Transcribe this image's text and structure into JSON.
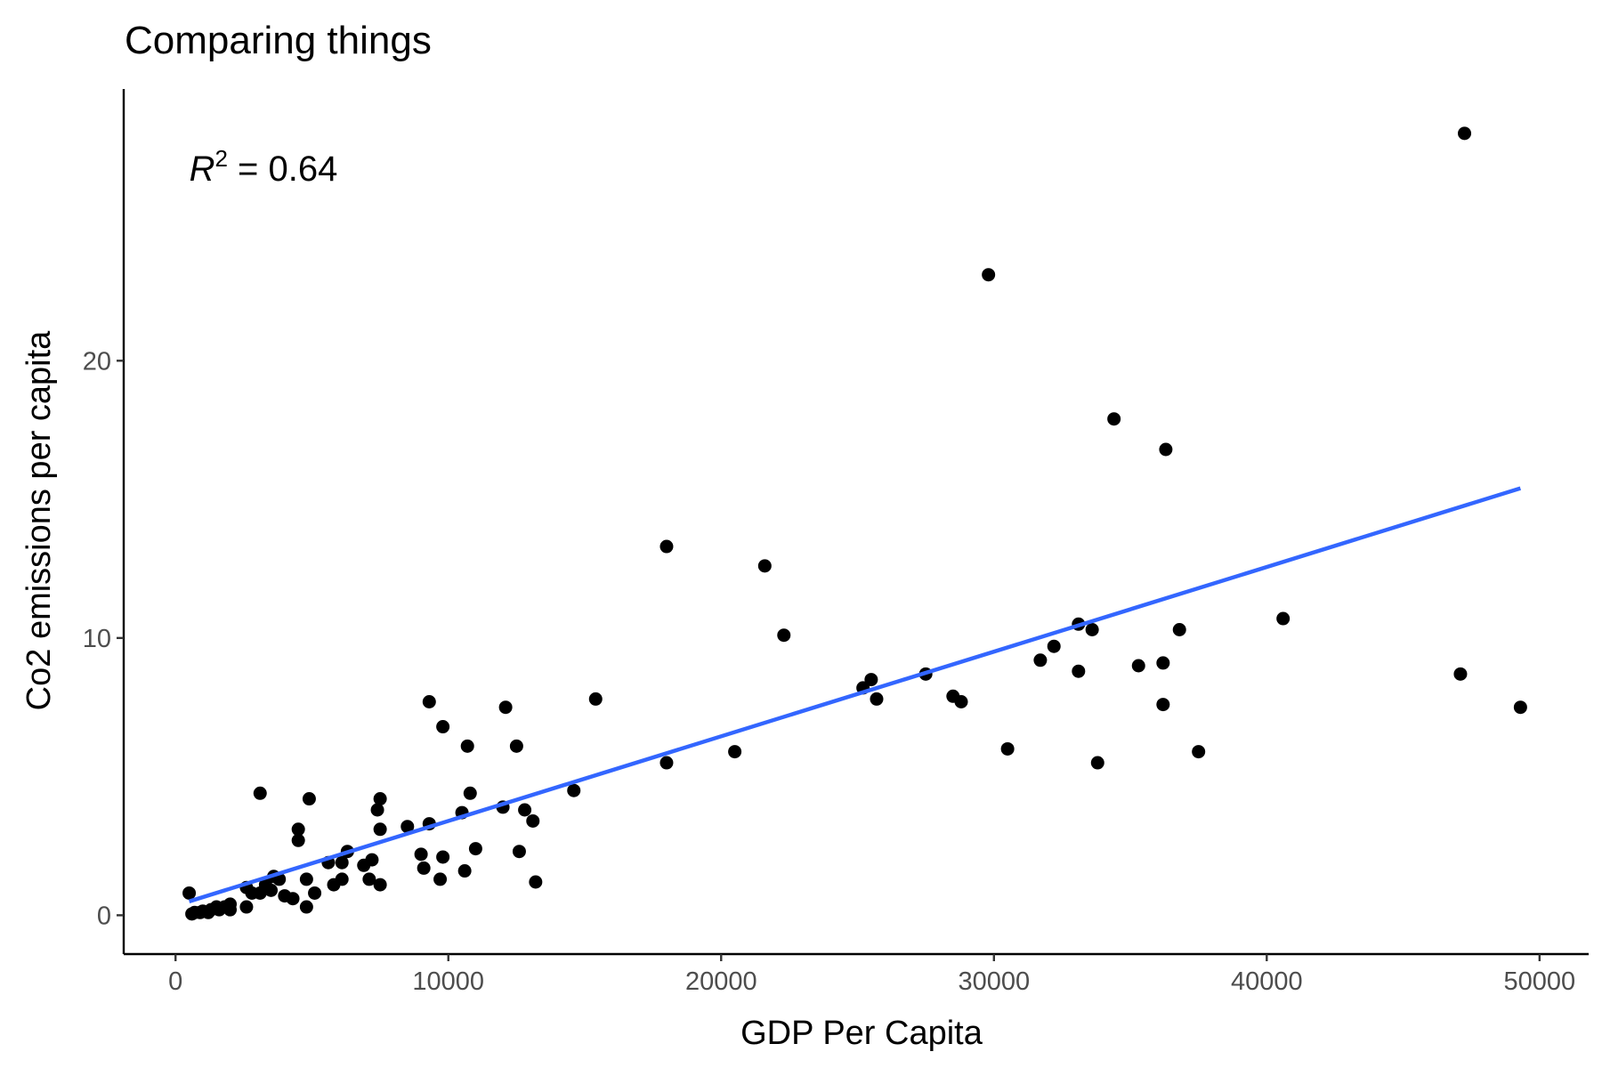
{
  "chart_data": {
    "type": "scatter",
    "title": "Comparing things",
    "xlabel": "GDP Per Capita",
    "ylabel": "Co2 emissions per capita",
    "xlim": [
      -1900,
      51800
    ],
    "ylim": [
      -1.4,
      29.8
    ],
    "x_ticks": [
      0,
      10000,
      20000,
      30000,
      40000,
      50000
    ],
    "x_tick_labels": [
      "0",
      "10000",
      "20000",
      "30000",
      "40000",
      "50000"
    ],
    "y_ticks": [
      0,
      10,
      20
    ],
    "y_tick_labels": [
      "0",
      "10",
      "20"
    ],
    "grid": false,
    "legend": "none",
    "point_color": "#000000",
    "annotation": {
      "symbol": "R",
      "superscript": "2",
      "text": " = 0.64",
      "x": 500,
      "y": 26.5
    },
    "trend_line": {
      "color": "#3366FF",
      "x": [
        500,
        49300
      ],
      "y": [
        0.5,
        15.4
      ]
    },
    "points": [
      {
        "x": 47250,
        "y": 28.2
      },
      {
        "x": 29800,
        "y": 23.1
      },
      {
        "x": 34400,
        "y": 17.9
      },
      {
        "x": 36300,
        "y": 16.8
      },
      {
        "x": 18000,
        "y": 13.3
      },
      {
        "x": 21600,
        "y": 12.6
      },
      {
        "x": 22300,
        "y": 10.1
      },
      {
        "x": 40600,
        "y": 10.7
      },
      {
        "x": 33100,
        "y": 10.5
      },
      {
        "x": 33600,
        "y": 10.3
      },
      {
        "x": 36800,
        "y": 10.3
      },
      {
        "x": 32200,
        "y": 9.7
      },
      {
        "x": 31700,
        "y": 9.2
      },
      {
        "x": 36200,
        "y": 9.1
      },
      {
        "x": 35300,
        "y": 9.0
      },
      {
        "x": 33100,
        "y": 8.8
      },
      {
        "x": 47100,
        "y": 8.7
      },
      {
        "x": 27500,
        "y": 8.7
      },
      {
        "x": 25500,
        "y": 8.5
      },
      {
        "x": 25200,
        "y": 8.2
      },
      {
        "x": 28500,
        "y": 7.9
      },
      {
        "x": 25700,
        "y": 7.8
      },
      {
        "x": 28800,
        "y": 7.7
      },
      {
        "x": 36200,
        "y": 7.6
      },
      {
        "x": 49300,
        "y": 7.5
      },
      {
        "x": 15400,
        "y": 7.8
      },
      {
        "x": 9300,
        "y": 7.7
      },
      {
        "x": 12100,
        "y": 7.5
      },
      {
        "x": 9800,
        "y": 6.8
      },
      {
        "x": 10700,
        "y": 6.1
      },
      {
        "x": 12500,
        "y": 6.1
      },
      {
        "x": 30500,
        "y": 6.0
      },
      {
        "x": 37500,
        "y": 5.9
      },
      {
        "x": 20500,
        "y": 5.9
      },
      {
        "x": 18000,
        "y": 5.5
      },
      {
        "x": 33800,
        "y": 5.5
      },
      {
        "x": 14600,
        "y": 4.5
      },
      {
        "x": 3100,
        "y": 4.4
      },
      {
        "x": 10800,
        "y": 4.4
      },
      {
        "x": 4900,
        "y": 4.2
      },
      {
        "x": 7500,
        "y": 4.2
      },
      {
        "x": 12000,
        "y": 3.9
      },
      {
        "x": 12800,
        "y": 3.8
      },
      {
        "x": 7400,
        "y": 3.8
      },
      {
        "x": 10500,
        "y": 3.7
      },
      {
        "x": 13100,
        "y": 3.4
      },
      {
        "x": 9300,
        "y": 3.3
      },
      {
        "x": 8500,
        "y": 3.2
      },
      {
        "x": 4500,
        "y": 3.1
      },
      {
        "x": 7500,
        "y": 3.1
      },
      {
        "x": 4500,
        "y": 2.7
      },
      {
        "x": 11000,
        "y": 2.4
      },
      {
        "x": 6300,
        "y": 2.3
      },
      {
        "x": 12600,
        "y": 2.3
      },
      {
        "x": 9000,
        "y": 2.2
      },
      {
        "x": 9800,
        "y": 2.1
      },
      {
        "x": 7200,
        "y": 2.0
      },
      {
        "x": 5600,
        "y": 1.9
      },
      {
        "x": 6100,
        "y": 1.9
      },
      {
        "x": 6900,
        "y": 1.8
      },
      {
        "x": 9100,
        "y": 1.7
      },
      {
        "x": 10600,
        "y": 1.6
      },
      {
        "x": 3600,
        "y": 1.4
      },
      {
        "x": 9700,
        "y": 1.3
      },
      {
        "x": 3800,
        "y": 1.3
      },
      {
        "x": 4800,
        "y": 1.3
      },
      {
        "x": 6100,
        "y": 1.3
      },
      {
        "x": 7100,
        "y": 1.3
      },
      {
        "x": 13200,
        "y": 1.2
      },
      {
        "x": 3300,
        "y": 1.1
      },
      {
        "x": 5800,
        "y": 1.1
      },
      {
        "x": 7500,
        "y": 1.1
      },
      {
        "x": 2600,
        "y": 1.0
      },
      {
        "x": 3500,
        "y": 0.9
      },
      {
        "x": 3100,
        "y": 0.8
      },
      {
        "x": 5100,
        "y": 0.8
      },
      {
        "x": 500,
        "y": 0.8
      },
      {
        "x": 2800,
        "y": 0.8
      },
      {
        "x": 4000,
        "y": 0.7
      },
      {
        "x": 4300,
        "y": 0.6
      },
      {
        "x": 2000,
        "y": 0.4
      },
      {
        "x": 1500,
        "y": 0.3
      },
      {
        "x": 2600,
        "y": 0.3
      },
      {
        "x": 4800,
        "y": 0.3
      },
      {
        "x": 1800,
        "y": 0.3
      },
      {
        "x": 1300,
        "y": 0.2
      },
      {
        "x": 2000,
        "y": 0.2
      },
      {
        "x": 1000,
        "y": 0.15
      },
      {
        "x": 1600,
        "y": 0.2
      },
      {
        "x": 700,
        "y": 0.1
      },
      {
        "x": 900,
        "y": 0.1
      },
      {
        "x": 1200,
        "y": 0.1
      },
      {
        "x": 600,
        "y": 0.05
      }
    ]
  }
}
